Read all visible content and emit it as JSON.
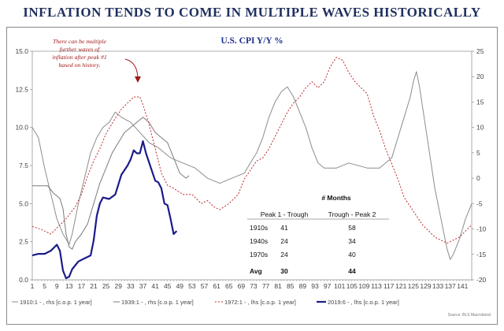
{
  "page_title": "INFLATION TENDS TO COME IN MULTIPLE WAVES HISTORICALLY",
  "source_note": "Source: BLS Macrobond",
  "chart_data": {
    "type": "line",
    "title": "U.S. CPI Y/Y %",
    "x": [
      1,
      2,
      3,
      4,
      5,
      6,
      7,
      8,
      9,
      10,
      11,
      12,
      13,
      14,
      15,
      16,
      17,
      18,
      19,
      20,
      21,
      22,
      23,
      24,
      25,
      26,
      27,
      28,
      29,
      30,
      31,
      32,
      33,
      34,
      35,
      36,
      37,
      38,
      39,
      40,
      41,
      42,
      43,
      44,
      45,
      46,
      47,
      48,
      49,
      50,
      51,
      52,
      53,
      54,
      55,
      56,
      57,
      58,
      59,
      60,
      61,
      62,
      63,
      64,
      65,
      66,
      67,
      68,
      69,
      70,
      71,
      72,
      73,
      74,
      75,
      76,
      77,
      78,
      79,
      80,
      81,
      82,
      83,
      84,
      85,
      86,
      87,
      88,
      89,
      90,
      91,
      92,
      93,
      94,
      95,
      96,
      97,
      98,
      99,
      100,
      101,
      102,
      103,
      104,
      105,
      106,
      107,
      108,
      109,
      110,
      111,
      112,
      113,
      114,
      115,
      116,
      117,
      118,
      119,
      120,
      121,
      122,
      123,
      124,
      125,
      126,
      127,
      128,
      129,
      130,
      131,
      132,
      133,
      134,
      135,
      136,
      137,
      138,
      139,
      140,
      141,
      142,
      143,
      144
    ],
    "x_tick_labels": [
      "1",
      "5",
      "9",
      "13",
      "17",
      "21",
      "25",
      "29",
      "33",
      "37",
      "41",
      "45",
      "49",
      "53",
      "57",
      "61",
      "65",
      "69",
      "73",
      "77",
      "81",
      "85",
      "89",
      "93",
      "97",
      "101",
      "105",
      "109",
      "113",
      "117",
      "121",
      "125",
      "129",
      "133",
      "137",
      "141"
    ],
    "x_tick_values": [
      1,
      5,
      9,
      13,
      17,
      21,
      25,
      29,
      33,
      37,
      41,
      45,
      49,
      53,
      57,
      61,
      65,
      69,
      73,
      77,
      81,
      85,
      89,
      93,
      97,
      101,
      105,
      109,
      113,
      117,
      121,
      125,
      129,
      133,
      137,
      141
    ],
    "left_axis": {
      "min": 0,
      "max": 15,
      "ticks": [
        0.0,
        2.5,
        5.0,
        7.5,
        10.0,
        12.5,
        15.0
      ],
      "tick_labels": [
        "0.0",
        "2.5",
        "5.0",
        "7.5",
        "10.0",
        "12.5",
        "15.0"
      ]
    },
    "right_axis": {
      "min": -20,
      "max": 25,
      "ticks": [
        -20,
        -15,
        -10,
        -5,
        0,
        5,
        10,
        15,
        20,
        25
      ],
      "tick_labels": [
        "-20",
        "-15",
        "-10",
        "-5",
        "0",
        "5",
        "10",
        "15",
        "20",
        "25"
      ]
    },
    "series": [
      {
        "name": "1910:1 - , rhs [c.o.p. 1 year]",
        "axis": "right",
        "color": "#8c8c8c",
        "style": "solid",
        "points": [
          [
            1,
            10
          ],
          [
            3,
            8
          ],
          [
            5,
            2
          ],
          [
            7,
            -3
          ],
          [
            9,
            -8
          ],
          [
            11,
            -11
          ],
          [
            13,
            -13
          ],
          [
            14,
            -11
          ],
          [
            16,
            -5
          ],
          [
            18,
            0
          ],
          [
            20,
            5
          ],
          [
            22,
            8
          ],
          [
            24,
            10
          ],
          [
            26,
            11
          ],
          [
            28,
            13
          ],
          [
            30,
            12
          ],
          [
            33,
            11
          ],
          [
            36,
            9
          ],
          [
            39,
            7
          ],
          [
            42,
            6
          ],
          [
            46,
            4
          ],
          [
            50,
            3
          ],
          [
            54,
            2
          ],
          [
            58,
            0
          ],
          [
            62,
            -1
          ],
          [
            66,
            0
          ],
          [
            70,
            1
          ],
          [
            72,
            3
          ],
          [
            74,
            5
          ],
          [
            76,
            8
          ],
          [
            78,
            12
          ],
          [
            80,
            15
          ],
          [
            82,
            17
          ],
          [
            84,
            18
          ],
          [
            86,
            16
          ],
          [
            88,
            13
          ],
          [
            90,
            10
          ],
          [
            92,
            6
          ],
          [
            94,
            3
          ],
          [
            96,
            2
          ],
          [
            100,
            2
          ],
          [
            104,
            3
          ],
          [
            110,
            2
          ],
          [
            114,
            2
          ],
          [
            118,
            4
          ],
          [
            122,
            12
          ],
          [
            124,
            16
          ],
          [
            125,
            19
          ],
          [
            126,
            21
          ],
          [
            127,
            18
          ],
          [
            128,
            14
          ],
          [
            130,
            6
          ],
          [
            132,
            -2
          ],
          [
            134,
            -8
          ],
          [
            136,
            -14
          ],
          [
            137,
            -16
          ],
          [
            138,
            -15
          ],
          [
            140,
            -12
          ],
          [
            142,
            -8
          ],
          [
            144,
            -5
          ]
        ]
      },
      {
        "name": "1939:1 - , rhs [c.o.p. 1 year]",
        "axis": "right",
        "color": "#7a7a7a",
        "style": "solid",
        "points": [
          [
            1,
            -1.5
          ],
          [
            6,
            -1.5
          ],
          [
            8,
            -3
          ],
          [
            10,
            -4
          ],
          [
            11,
            -6
          ],
          [
            12,
            -11
          ],
          [
            13,
            -13.5
          ],
          [
            14,
            -14
          ],
          [
            15,
            -12.5
          ],
          [
            17,
            -11
          ],
          [
            19,
            -9
          ],
          [
            21,
            -5
          ],
          [
            23,
            -1
          ],
          [
            25,
            2
          ],
          [
            27,
            5
          ],
          [
            29,
            7
          ],
          [
            31,
            9
          ],
          [
            33,
            10
          ],
          [
            35,
            11
          ],
          [
            37,
            12
          ],
          [
            39,
            11
          ],
          [
            41,
            9
          ],
          [
            43,
            8
          ],
          [
            45,
            7
          ],
          [
            47,
            4
          ],
          [
            49,
            1
          ],
          [
            51,
            0
          ],
          [
            52,
            0.5
          ]
        ]
      },
      {
        "name": "1972:1 - , lhs [c.o.p. 1 year]",
        "axis": "left",
        "color": "#c0282d",
        "style": "dashed",
        "points": [
          [
            1,
            3.5
          ],
          [
            4,
            3.3
          ],
          [
            7,
            3
          ],
          [
            10,
            3.6
          ],
          [
            12,
            4.0
          ],
          [
            15,
            4.8
          ],
          [
            17,
            5.6
          ],
          [
            19,
            6.8
          ],
          [
            21,
            7.8
          ],
          [
            23,
            8.6
          ],
          [
            25,
            9.6
          ],
          [
            28,
            10.6
          ],
          [
            30,
            11.2
          ],
          [
            32,
            11.6
          ],
          [
            34,
            12.0
          ],
          [
            36,
            12.0
          ],
          [
            37,
            11.5
          ],
          [
            39,
            10.2
          ],
          [
            41,
            8.6
          ],
          [
            43,
            7.0
          ],
          [
            45,
            6.2
          ],
          [
            47,
            6.0
          ],
          [
            50,
            5.6
          ],
          [
            53,
            5.6
          ],
          [
            56,
            5.0
          ],
          [
            58,
            5.2
          ],
          [
            60,
            4.8
          ],
          [
            62,
            4.6
          ],
          [
            65,
            5.0
          ],
          [
            68,
            5.6
          ],
          [
            70,
            6.6
          ],
          [
            72,
            7.2
          ],
          [
            74,
            7.8
          ],
          [
            76,
            8.0
          ],
          [
            78,
            8.6
          ],
          [
            80,
            9.4
          ],
          [
            82,
            10.2
          ],
          [
            84,
            11.0
          ],
          [
            86,
            11.6
          ],
          [
            88,
            12.0
          ],
          [
            90,
            12.6
          ],
          [
            92,
            13.0
          ],
          [
            94,
            12.6
          ],
          [
            96,
            13.0
          ],
          [
            98,
            14.0
          ],
          [
            100,
            14.6
          ],
          [
            102,
            14.4
          ],
          [
            104,
            13.6
          ],
          [
            106,
            13.0
          ],
          [
            108,
            12.6
          ],
          [
            110,
            12.2
          ],
          [
            112,
            10.8
          ],
          [
            114,
            9.8
          ],
          [
            116,
            8.6
          ],
          [
            118,
            7.6
          ],
          [
            120,
            6.6
          ],
          [
            122,
            5.4
          ],
          [
            124,
            4.8
          ],
          [
            126,
            4.2
          ],
          [
            128,
            3.6
          ],
          [
            130,
            3.2
          ],
          [
            132,
            2.8
          ],
          [
            134,
            2.6
          ],
          [
            136,
            2.4
          ],
          [
            138,
            2.6
          ],
          [
            140,
            2.8
          ],
          [
            142,
            3.2
          ],
          [
            144,
            3.6
          ]
        ]
      },
      {
        "name": "2019:6 - , lhs [c.o.p. 1 year]",
        "axis": "left",
        "color": "#1b1b8a",
        "style": "solid",
        "points": [
          [
            1,
            1.6
          ],
          [
            3,
            1.7
          ],
          [
            5,
            1.7
          ],
          [
            7,
            1.9
          ],
          [
            9,
            2.3
          ],
          [
            10,
            1.9
          ],
          [
            11,
            0.6
          ],
          [
            12,
            0.1
          ],
          [
            13,
            0.2
          ],
          [
            14,
            0.7
          ],
          [
            16,
            1.2
          ],
          [
            18,
            1.4
          ],
          [
            20,
            1.6
          ],
          [
            21,
            2.6
          ],
          [
            22,
            4.2
          ],
          [
            23,
            5.0
          ],
          [
            24,
            5.4
          ],
          [
            26,
            5.3
          ],
          [
            28,
            5.6
          ],
          [
            30,
            6.9
          ],
          [
            32,
            7.5
          ],
          [
            33,
            7.9
          ],
          [
            34,
            8.5
          ],
          [
            35,
            8.3
          ],
          [
            36,
            8.3
          ],
          [
            37,
            9.1
          ],
          [
            38,
            8.3
          ],
          [
            39,
            7.7
          ],
          [
            40,
            7.1
          ],
          [
            41,
            6.5
          ],
          [
            42,
            6.4
          ],
          [
            43,
            6.0
          ],
          [
            44,
            5.0
          ],
          [
            45,
            4.9
          ],
          [
            46,
            4.0
          ],
          [
            47,
            3.0
          ],
          [
            48,
            3.2
          ]
        ]
      }
    ],
    "annotation": [
      "There can be multiple",
      "further waves of",
      "inflation after peak #1",
      "based on history."
    ],
    "table": {
      "title": "# Months",
      "headers": [
        "",
        "Peak 1 - Trough",
        "Trough - Peak 2"
      ],
      "rows": [
        [
          "1910s",
          "41",
          "58"
        ],
        [
          "1940s",
          "24",
          "34"
        ],
        [
          "1970s",
          "24",
          "40"
        ]
      ],
      "avg": [
        "Avg",
        "30",
        "44"
      ]
    },
    "legend": [
      "1910:1 - , rhs [c.o.p. 1 year]",
      "1939:1 - , rhs [c.o.p. 1 year]",
      "1972:1 - , lhs [c.o.p. 1 year]",
      "2019:6 - , lhs [c.o.p. 1 year]"
    ]
  }
}
